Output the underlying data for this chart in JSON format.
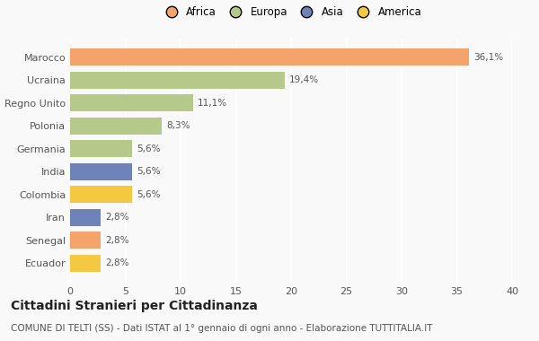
{
  "countries": [
    "Marocco",
    "Ucraina",
    "Regno Unito",
    "Polonia",
    "Germania",
    "India",
    "Colombia",
    "Iran",
    "Senegal",
    "Ecuador"
  ],
  "values": [
    36.1,
    19.4,
    11.1,
    8.3,
    5.6,
    5.6,
    5.6,
    2.8,
    2.8,
    2.8
  ],
  "labels": [
    "36,1%",
    "19,4%",
    "11,1%",
    "8,3%",
    "5,6%",
    "5,6%",
    "5,6%",
    "2,8%",
    "2,8%",
    "2,8%"
  ],
  "colors": [
    "#F4A46A",
    "#B5C98A",
    "#B5C98A",
    "#B5C98A",
    "#B5C98A",
    "#6E83B7",
    "#F5C842",
    "#6E83B7",
    "#F4A46A",
    "#F5C842"
  ],
  "legend_labels": [
    "Africa",
    "Europa",
    "Asia",
    "America"
  ],
  "legend_colors": [
    "#F4A46A",
    "#B5C98A",
    "#6E83B7",
    "#F5C842"
  ],
  "title": "Cittadini Stranieri per Cittadinanza",
  "subtitle": "COMUNE DI TELTI (SS) - Dati ISTAT al 1° gennaio di ogni anno - Elaborazione TUTTITALIA.IT",
  "xlim": [
    0,
    40
  ],
  "xticks": [
    0,
    5,
    10,
    15,
    20,
    25,
    30,
    35,
    40
  ],
  "bg_color": "#f9f9f9",
  "grid_color": "#ffffff",
  "bar_height": 0.75,
  "title_fontsize": 10,
  "subtitle_fontsize": 7.5,
  "tick_fontsize": 8,
  "label_fontsize": 7.5,
  "legend_fontsize": 8.5
}
